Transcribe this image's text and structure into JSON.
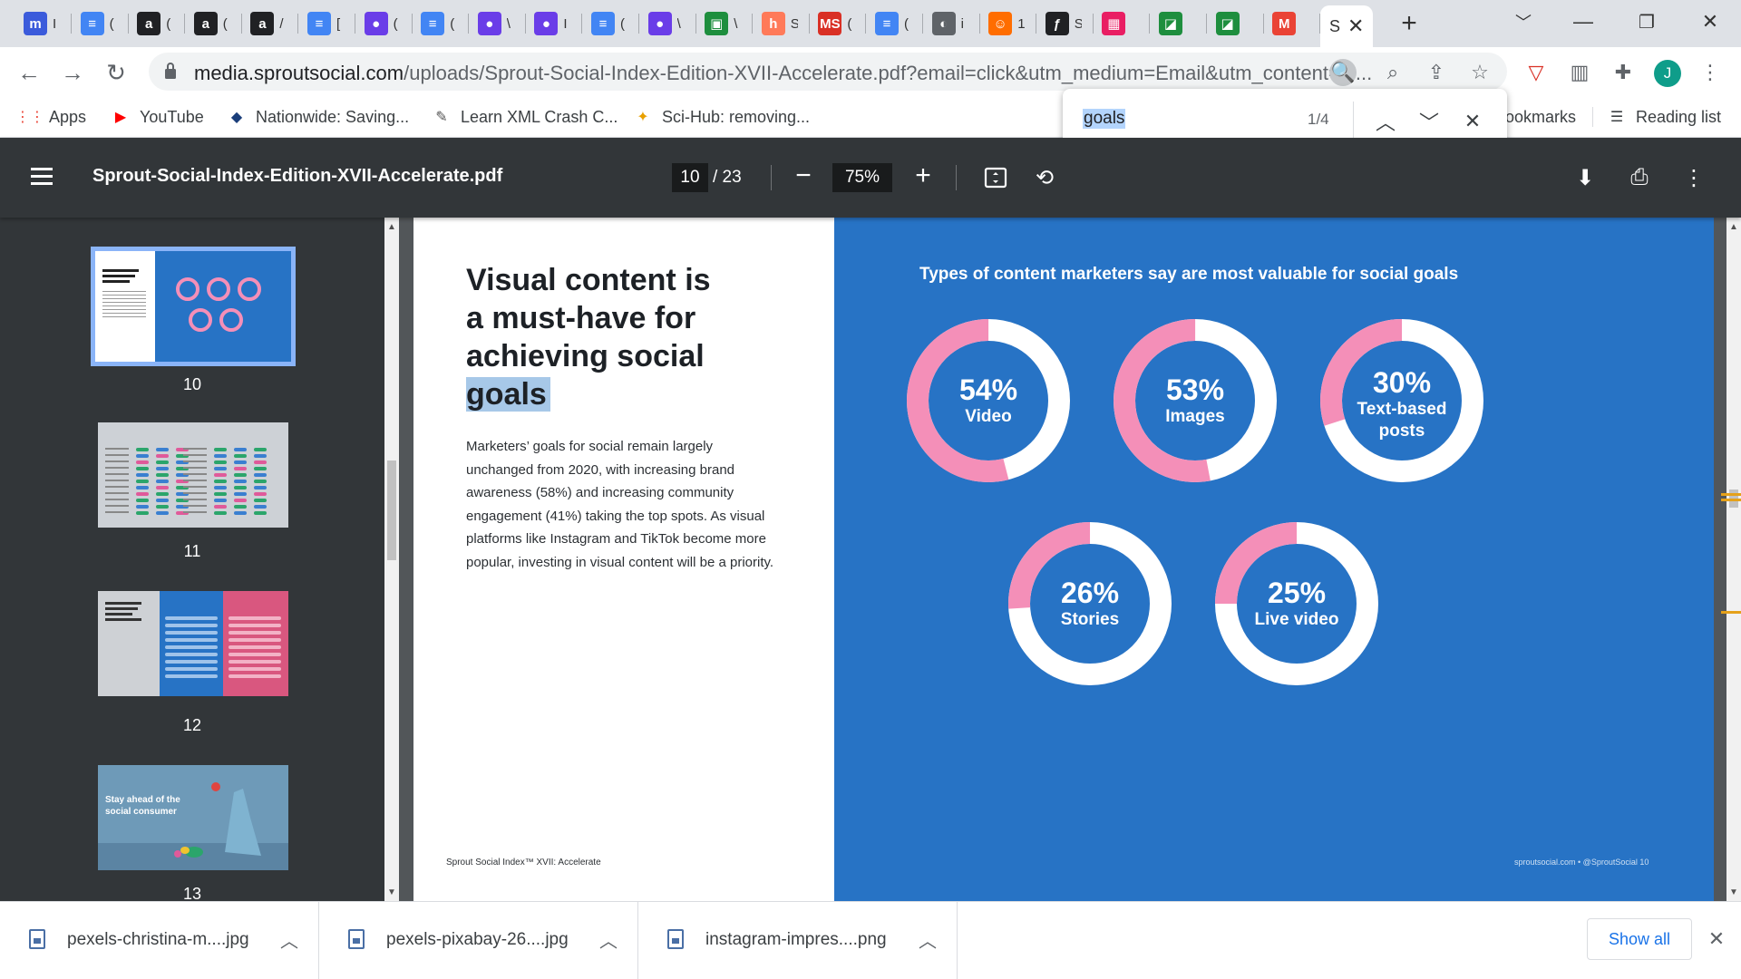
{
  "tabs": [
    {
      "icon": "m",
      "color": "#3b5bdb",
      "title": "I",
      "icon_name": "meetup-icon"
    },
    {
      "icon": "≡",
      "color": "#4285f4",
      "title": "(",
      "icon_name": "docs-icon"
    },
    {
      "icon": "a",
      "color": "#202124",
      "title": "(",
      "icon_name": "amazon-icon"
    },
    {
      "icon": "a",
      "color": "#202124",
      "title": "(",
      "icon_name": "amazon-icon"
    },
    {
      "icon": "a",
      "color": "#202124",
      "title": "/",
      "icon_name": "amazon-icon"
    },
    {
      "icon": "≡",
      "color": "#4285f4",
      "title": "[",
      "icon_name": "docs-icon"
    },
    {
      "icon": "●",
      "color": "#6a3de8",
      "title": "(",
      "icon_name": "chat-bubble-icon"
    },
    {
      "icon": "≡",
      "color": "#4285f4",
      "title": "(",
      "icon_name": "docs-icon"
    },
    {
      "icon": "●",
      "color": "#6a3de8",
      "title": "\\",
      "icon_name": "chat-bubble-icon"
    },
    {
      "icon": "●",
      "color": "#6a3de8",
      "title": "I",
      "icon_name": "chat-bubble-icon"
    },
    {
      "icon": "≡",
      "color": "#4285f4",
      "title": "(",
      "icon_name": "docs-icon"
    },
    {
      "icon": "●",
      "color": "#6a3de8",
      "title": "\\",
      "icon_name": "chat-bubble-icon"
    },
    {
      "icon": "▣",
      "color": "#1e8e3e",
      "title": "\\",
      "icon_name": "chat-icon"
    },
    {
      "icon": "h",
      "color": "#ff7a59",
      "title": "S",
      "icon_name": "hubspot-icon"
    },
    {
      "icon": "MS",
      "color": "#d93025",
      "title": "(",
      "icon_name": "ms-icon"
    },
    {
      "icon": "≡",
      "color": "#4285f4",
      "title": "(",
      "icon_name": "docs-icon"
    },
    {
      "icon": "◐",
      "color": "#5f6368",
      "title": "i",
      "icon_name": "globe-icon"
    },
    {
      "icon": "☺",
      "color": "#ff6d00",
      "title": "1",
      "icon_name": "reddit-icon"
    },
    {
      "icon": "ƒ",
      "color": "#202124",
      "title": "S",
      "icon_name": "swirl-icon"
    },
    {
      "icon": "▦",
      "color": "#e91e63",
      "title": "",
      "icon_name": "colorful-icon"
    },
    {
      "icon": "◪",
      "color": "#1e8e3e",
      "title": "",
      "icon_name": "green-app-icon"
    },
    {
      "icon": "◪",
      "color": "#1e8e3e",
      "title": "",
      "icon_name": "green-app-icon"
    },
    {
      "icon": "M",
      "color": "#ea4335",
      "title": "",
      "icon_name": "gmail-icon"
    }
  ],
  "active_tab": {
    "title": "S",
    "close": "✕"
  },
  "window": {
    "minimize": "﹀",
    "restore": "❐",
    "close": "✕",
    "new_tab": "+"
  },
  "address": {
    "url_host": "media.sproutsocial.com",
    "url_path": "/uploads/Sprout-Social-Index-Edition-XVII-Accelerate.pdf?email=click&utm_medium=Email&utm_content=G..."
  },
  "bookmarks": [
    {
      "label": "Apps",
      "icon": "⋮⋮",
      "color": "#ea4335"
    },
    {
      "label": "YouTube",
      "icon": "▶",
      "color": "#ff0000"
    },
    {
      "label": "Nationwide: Saving...",
      "icon": "◆",
      "color": "#1a3e7a"
    },
    {
      "label": "Learn XML Crash C...",
      "icon": "✎",
      "color": "#555"
    },
    {
      "label": "Sci-Hub: removing...",
      "icon": "✦",
      "color": "#e8a000"
    }
  ],
  "bookmarks_right": {
    "other": "ookmarks",
    "reading": "Reading list"
  },
  "find": {
    "query": "goals",
    "count": "1/4"
  },
  "pdf": {
    "filename": "Sprout-Social-Index-Edition-XVII-Accelerate.pdf",
    "page": "10",
    "total": "/  23",
    "zoom": "75%"
  },
  "thumbnails": [
    {
      "number": "10"
    },
    {
      "number": "11"
    },
    {
      "number": "12"
    },
    {
      "number": "13"
    }
  ],
  "thumb13_text": "Stay ahead of the social consumer",
  "document": {
    "headline_1": "Visual content is",
    "headline_2": "a must-have for",
    "headline_3": "achieving social",
    "headline_4": "goals",
    "body": "Marketers’ goals for social remain largely unchanged from 2020, with increasing brand awareness (58%) and increasing community engagement (41%) taking the top spots. As visual platforms like Instagram and TikTok become more popular, investing in visual content will be a priority.",
    "footer_left": "Sprout Social Index™ XVII: Accelerate",
    "footer_right": "sproutsocial.com  •  @SproutSocial    10"
  },
  "chart_data": {
    "type": "pie",
    "title": "Types of content marketers say are most valuable for social goals",
    "colors": {
      "fill": "#f48fb8",
      "remainder": "#ffffff",
      "background": "#2773c5"
    },
    "items": [
      {
        "label": "Video",
        "value": 54,
        "display": "54%"
      },
      {
        "label": "Images",
        "value": 53,
        "display": "53%"
      },
      {
        "label": "Text-based posts",
        "value": 30,
        "display": "30%"
      },
      {
        "label": "Stories",
        "value": 26,
        "display": "26%"
      },
      {
        "label": "Live video",
        "value": 25,
        "display": "25%"
      }
    ]
  },
  "downloads": [
    {
      "name": "pexels-christina-m....jpg"
    },
    {
      "name": "pexels-pixabay-26....jpg"
    },
    {
      "name": "instagram-impres....png"
    }
  ],
  "downloads_show_all": "Show all"
}
